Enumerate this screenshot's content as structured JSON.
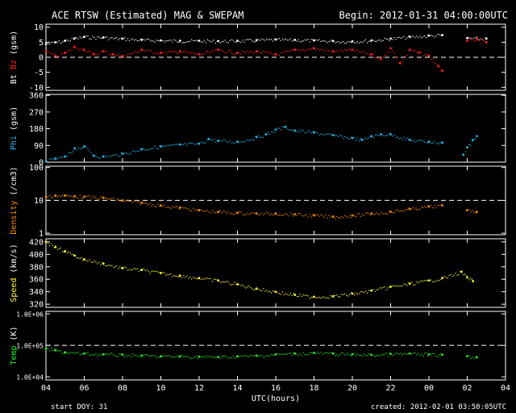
{
  "header": {
    "title": "ACE RTSW (Estimated) MAG & SWEPAM",
    "begin": "Begin: 2012-01-31 04:00:00UTC"
  },
  "footer": {
    "start_doy": "start DOY:  31",
    "created": "created: 2012-02-01 03:50:05UTC",
    "xlabel": "UTC(hours)"
  },
  "colors": {
    "bt": "#ffffff",
    "bz": "#ff2020",
    "phi": "#22b8ee",
    "density": "#ff8c00",
    "speed": "#ffff33",
    "temp": "#22ee22",
    "axes": "#ffffff"
  },
  "chart_data": {
    "type": "scatter",
    "x_ticks": [
      "04",
      "06",
      "08",
      "10",
      "12",
      "14",
      "16",
      "18",
      "20",
      "22",
      "00",
      "02",
      "04"
    ],
    "x_range_hours": [
      4,
      28
    ],
    "panels": [
      {
        "id": "mag",
        "ylabel_parts": [
          {
            "text": "Bt",
            "color": "#ffffff"
          },
          {
            "text": " ",
            "color": "#ffffff"
          },
          {
            "text": "Bz",
            "color": "#ff2020"
          },
          {
            "text": " (gsm)",
            "color": "#ffffff"
          }
        ],
        "ylim": [
          -11,
          11
        ],
        "yticks": [
          10,
          5,
          0,
          -5,
          -10
        ],
        "ytick_labels": [
          "10",
          "5",
          "0",
          "-5",
          "-10"
        ],
        "dashed": [
          0
        ],
        "log": false,
        "series": [
          {
            "name": "Bt",
            "color": "#ffffff",
            "x": [
              4.0,
              4.5,
              5.0,
              5.5,
              6.0,
              7.0,
              8.0,
              9.0,
              10.0,
              11.0,
              12.0,
              13.0,
              14.0,
              15.0,
              16.0,
              17.0,
              18.0,
              19.0,
              20.0,
              21.0,
              22.0,
              23.0,
              24.0,
              24.7,
              26.0,
              27.0
            ],
            "y": [
              4.5,
              5.0,
              5.5,
              6.3,
              6.8,
              6.6,
              6.2,
              5.8,
              5.6,
              5.5,
              5.5,
              5.4,
              5.5,
              5.7,
              5.9,
              5.8,
              5.6,
              5.4,
              5.3,
              5.6,
              6.2,
              6.8,
              7.2,
              7.4,
              6.4,
              6.2
            ]
          },
          {
            "name": "Bz",
            "color": "#ff2020",
            "x": [
              4.0,
              4.5,
              5.0,
              5.5,
              6.0,
              6.5,
              7.0,
              7.5,
              8.0,
              9.0,
              10.0,
              11.0,
              12.0,
              13.0,
              14.0,
              15.0,
              16.0,
              17.0,
              18.0,
              19.0,
              20.0,
              21.0,
              21.5,
              22.0,
              22.5,
              23.0,
              23.5,
              24.0,
              24.5,
              24.7,
              26.0,
              26.5,
              27.0
            ],
            "y": [
              2.0,
              0.5,
              1.5,
              3.5,
              2.5,
              1.0,
              2.0,
              1.0,
              0.5,
              2.5,
              1.5,
              2.0,
              1.0,
              2.5,
              1.5,
              2.0,
              1.0,
              2.5,
              3.0,
              2.0,
              2.5,
              1.0,
              -0.5,
              3.0,
              -2.0,
              2.5,
              1.5,
              0.5,
              -3.0,
              -4.5,
              5.5,
              6.0,
              5.0
            ]
          }
        ]
      },
      {
        "id": "phi",
        "ylabel_parts": [
          {
            "text": "Phi",
            "color": "#22b8ee"
          },
          {
            "text": " (gsm)",
            "color": "#ffffff"
          }
        ],
        "ylim": [
          0,
          365
        ],
        "yticks": [
          360,
          270,
          180,
          90,
          0
        ],
        "ytick_labels": [
          "360",
          "270",
          "180",
          "90",
          "0"
        ],
        "dashed": [],
        "log": false,
        "series": [
          {
            "name": "Phi",
            "color": "#22b8ee",
            "x": [
              4.0,
              4.5,
              5.0,
              5.5,
              6.0,
              6.5,
              7.0,
              8.0,
              9.0,
              10.0,
              11.0,
              12.0,
              12.5,
              13.0,
              14.0,
              15.0,
              15.5,
              16.0,
              16.5,
              17.0,
              18.0,
              19.0,
              20.0,
              20.5,
              21.0,
              21.5,
              22.0,
              23.0,
              24.0,
              24.7,
              25.8,
              26.0,
              26.3,
              26.5
            ],
            "y": [
              5,
              20,
              30,
              75,
              85,
              35,
              30,
              45,
              70,
              85,
              95,
              100,
              125,
              115,
              110,
              135,
              150,
              175,
              190,
              170,
              160,
              145,
              130,
              120,
              140,
              150,
              150,
              120,
              110,
              105,
              40,
              80,
              120,
              140
            ]
          }
        ]
      },
      {
        "id": "density",
        "ylabel_parts": [
          {
            "text": "Density",
            "color": "#ff8c00"
          },
          {
            "text": " (/cm3)",
            "color": "#ffffff"
          }
        ],
        "ylim": [
          0.9,
          110
        ],
        "yticks": [
          100,
          10,
          1
        ],
        "ytick_labels": [
          "100",
          "10",
          "1"
        ],
        "dashed": [
          10
        ],
        "log": true,
        "series": [
          {
            "name": "Density",
            "color": "#ff8c00",
            "x": [
              4.0,
              4.5,
              5.0,
              5.5,
              6.0,
              7.0,
              8.0,
              9.0,
              10.0,
              11.0,
              12.0,
              13.0,
              14.0,
              15.0,
              16.0,
              17.0,
              18.0,
              19.0,
              20.0,
              21.0,
              22.0,
              23.0,
              24.0,
              24.7,
              26.0,
              26.5
            ],
            "y": [
              13,
              14,
              14,
              13.5,
              13,
              12,
              10,
              8.5,
              7,
              6,
              5,
              4.5,
              4.2,
              4,
              4,
              3.8,
              3.5,
              3.2,
              3.5,
              4,
              4.5,
              5.5,
              6.5,
              7,
              5,
              4.5
            ]
          }
        ]
      },
      {
        "id": "speed",
        "ylabel_parts": [
          {
            "text": "Speed",
            "color": "#ffff33"
          },
          {
            "text": " (km/s)",
            "color": "#ffffff"
          }
        ],
        "ylim": [
          315,
          425
        ],
        "yticks": [
          420,
          400,
          380,
          360,
          340,
          320
        ],
        "ytick_labels": [
          "420",
          "400",
          "380",
          "360",
          "340",
          "320"
        ],
        "dashed": [],
        "log": false,
        "series": [
          {
            "name": "Speed",
            "color": "#ffff33",
            "x": [
              4.0,
              4.5,
              5.0,
              5.5,
              6.0,
              7.0,
              8.0,
              9.0,
              10.0,
              11.0,
              12.0,
              13.0,
              14.0,
              15.0,
              16.0,
              17.0,
              18.0,
              19.0,
              20.0,
              21.0,
              22.0,
              23.0,
              24.0,
              24.7,
              25.7,
              26.0,
              26.3
            ],
            "y": [
              420,
              412,
              405,
              398,
              392,
              385,
              378,
              375,
              370,
              366,
              362,
              358,
              352,
              345,
              340,
              335,
              332,
              333,
              337,
              342,
              348,
              353,
              358,
              362,
              372,
              363,
              357
            ]
          }
        ]
      },
      {
        "id": "temp",
        "ylabel_parts": [
          {
            "text": "Temp",
            "color": "#22ee22"
          },
          {
            "text": " (K)",
            "color": "#ffffff"
          }
        ],
        "ylim": [
          8000,
          1200000
        ],
        "yticks": [
          1000000,
          100000,
          10000
        ],
        "ytick_labels": [
          "1.0E+06",
          "1.0E+05",
          "1.0E+04"
        ],
        "dashed": [
          100000
        ],
        "log": true,
        "series": [
          {
            "name": "Temp",
            "color": "#22ee22",
            "x": [
              4.0,
              4.5,
              5.0,
              6.0,
              7.0,
              8.0,
              9.0,
              10.0,
              11.0,
              12.0,
              13.0,
              14.0,
              15.0,
              16.0,
              17.0,
              18.0,
              19.0,
              20.0,
              21.0,
              22.0,
              23.0,
              24.0,
              24.7,
              26.0,
              26.5
            ],
            "y": [
              80000,
              70000,
              60000,
              55000,
              52000,
              50000,
              48000,
              45000,
              45000,
              44000,
              43000,
              45000,
              47000,
              52000,
              55000,
              58000,
              55000,
              52000,
              50000,
              53000,
              55000,
              52000,
              50000,
              45000,
              42000
            ]
          }
        ]
      }
    ]
  }
}
